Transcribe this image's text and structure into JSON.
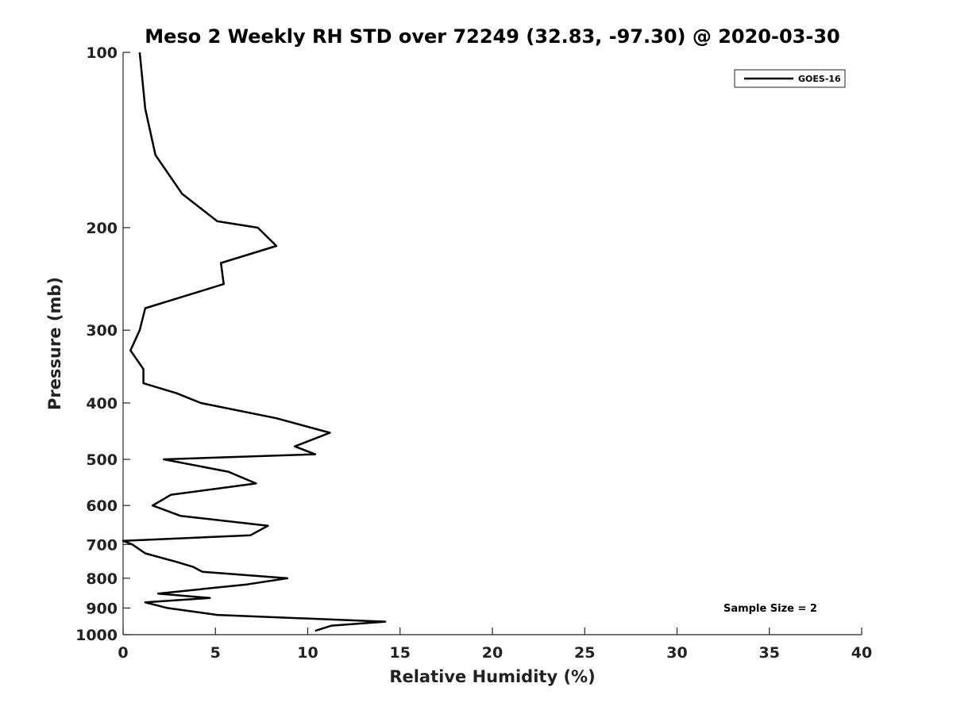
{
  "chart_data": {
    "type": "line",
    "title": "Meso 2 Weekly RH STD over 72249 (32.83, -97.30) @ 2020-03-30",
    "xlabel": "Relative Humidity (%)",
    "ylabel": "Pressure (mb)",
    "xlim": [
      0,
      40
    ],
    "ylim": [
      1000,
      100
    ],
    "y_scale": "log",
    "y_reversed": true,
    "x_ticks": [
      "0",
      "5",
      "10",
      "15",
      "20",
      "25",
      "30",
      "35",
      "40"
    ],
    "y_ticks": [
      "100",
      "200",
      "300",
      "400",
      "500",
      "600",
      "700",
      "800",
      "900",
      "1000"
    ],
    "grid": false,
    "legend_position": "top-right",
    "series": [
      {
        "name": "GOES-16",
        "color": "#000000",
        "points": [
          [
            0.9,
            100
          ],
          [
            1.2,
            125
          ],
          [
            1.75,
            150
          ],
          [
            3.2,
            175
          ],
          [
            5.1,
            195
          ],
          [
            7.3,
            200
          ],
          [
            8.3,
            215
          ],
          [
            5.3,
            230
          ],
          [
            5.45,
            250
          ],
          [
            1.2,
            275
          ],
          [
            0.9,
            300
          ],
          [
            0.4,
            325
          ],
          [
            1.1,
            350
          ],
          [
            1.1,
            370
          ],
          [
            2.9,
            385
          ],
          [
            4.2,
            400
          ],
          [
            8.3,
            425
          ],
          [
            11.2,
            450
          ],
          [
            9.3,
            475
          ],
          [
            10.4,
            490
          ],
          [
            2.2,
            500
          ],
          [
            5.7,
            525
          ],
          [
            7.2,
            550
          ],
          [
            2.6,
            575
          ],
          [
            1.6,
            600
          ],
          [
            3.1,
            625
          ],
          [
            7.85,
            650
          ],
          [
            6.9,
            675
          ],
          [
            0,
            690
          ],
          [
            0.5,
            700
          ],
          [
            1.2,
            725
          ],
          [
            2.9,
            750
          ],
          [
            3.8,
            765
          ],
          [
            4.3,
            780
          ],
          [
            8.9,
            800
          ],
          [
            6.7,
            820
          ],
          [
            1.9,
            850
          ],
          [
            4.7,
            865
          ],
          [
            1.2,
            880
          ],
          [
            2.4,
            900
          ],
          [
            5.1,
            925
          ],
          [
            14.2,
            950
          ],
          [
            11.3,
            965
          ],
          [
            10.4,
            985
          ]
        ]
      }
    ],
    "annotation": "Sample Size = 2"
  }
}
